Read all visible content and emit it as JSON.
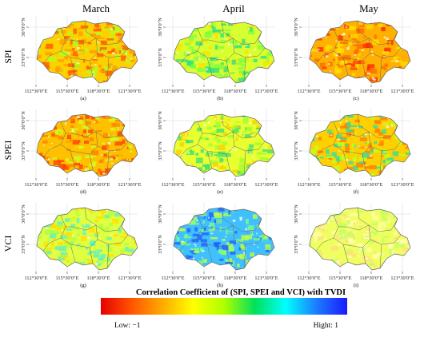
{
  "columns": [
    "March",
    "April",
    "May"
  ],
  "rows": [
    "SPI",
    "SPEI",
    "VCI"
  ],
  "panel_labels": [
    "(a)",
    "(b)",
    "(c)",
    "(d)",
    "(e)",
    "(f)",
    "(g)",
    "(h)",
    "(i)"
  ],
  "x_ticks": [
    "112°30′0″E",
    "115°30′0″E",
    "118°30′0″E",
    "121°30′0″E"
  ],
  "y_ticks": [
    "36°0′0″N",
    "33°0′0″N"
  ],
  "colorbar": {
    "title": "Correlation Coefficient of (SPI, SPEI and VCI) with TVDI",
    "low_label": "Low: −1",
    "high_label": "Hight: 1",
    "colors": [
      "#e60000",
      "#ff5500",
      "#ffaa00",
      "#ffff00",
      "#b0ff00",
      "#00e05a",
      "#00ffff",
      "#1c7cff",
      "#1a1aff"
    ],
    "min": -1,
    "max": 1
  },
  "panels": [
    {
      "label": "(a)",
      "row": "SPI",
      "column": "March",
      "dominant": [
        "#ffd000",
        "#ff9a00",
        "#ff5a00",
        "#b0ff20"
      ]
    },
    {
      "label": "(b)",
      "row": "SPI",
      "column": "April",
      "dominant": [
        "#d8ff30",
        "#80ff40",
        "#ffe000",
        "#30e080"
      ]
    },
    {
      "label": "(c)",
      "row": "SPI",
      "column": "May",
      "dominant": [
        "#ffb000",
        "#ff6a00",
        "#ff2a00",
        "#ffe000"
      ]
    },
    {
      "label": "(d)",
      "row": "SPEI",
      "column": "March",
      "dominant": [
        "#ffc000",
        "#ff8000",
        "#ff4000",
        "#d0ff20"
      ]
    },
    {
      "label": "(e)",
      "row": "SPEI",
      "column": "April",
      "dominant": [
        "#e8ff30",
        "#a0ff30",
        "#ffd000",
        "#40e070"
      ]
    },
    {
      "label": "(f)",
      "row": "SPEI",
      "column": "May",
      "dominant": [
        "#ffd000",
        "#c0ff20",
        "#ff8000",
        "#30e0a0"
      ]
    },
    {
      "label": "(g)",
      "row": "VCI",
      "column": "March",
      "dominant": [
        "#e0ff40",
        "#b0ff40",
        "#ffe000",
        "#60f0c0"
      ]
    },
    {
      "label": "(h)",
      "row": "VCI",
      "column": "April",
      "dominant": [
        "#40c0ff",
        "#80ff80",
        "#2060ff",
        "#c0ff40"
      ]
    },
    {
      "label": "(i)",
      "row": "VCI",
      "column": "May",
      "dominant": [
        "#f0ff60",
        "#ffffb0",
        "#c0ff60",
        "#ffe080"
      ]
    }
  ]
}
